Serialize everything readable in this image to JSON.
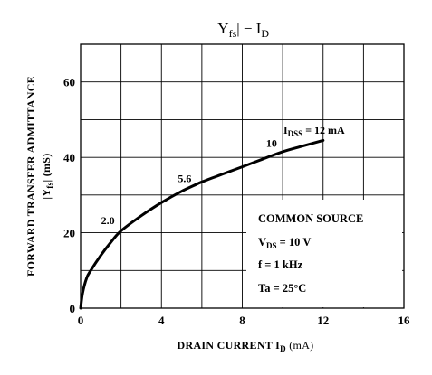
{
  "chart_data": {
    "type": "line",
    "title": {
      "left": "|Y",
      "sub": "fs",
      "mid": "| − I",
      "sub2": "D"
    },
    "xlabel": {
      "main": "DRAIN CURRENT   I",
      "sub": "D",
      "unit": "(mA)"
    },
    "ylabel": {
      "line1": "FORWARD TRANSFER ADMITTANCE",
      "line2_pre": "|Y",
      "line2_sub": "fs",
      "line2_post": "|   (mS)"
    },
    "xlim": [
      0,
      16
    ],
    "ylim": [
      0,
      70
    ],
    "xticks": [
      0,
      4,
      8,
      12,
      16
    ],
    "yticks": [
      0,
      20,
      40,
      60
    ],
    "grid": true,
    "series": [
      {
        "x": [
          0,
          0.1,
          0.3,
          0.5,
          1,
          1.5,
          2,
          3,
          4,
          5,
          5.6,
          6,
          7,
          8,
          9,
          10,
          11,
          12
        ],
        "y": [
          0,
          4,
          8,
          10,
          14,
          17.5,
          20.5,
          24.5,
          28,
          31,
          32.5,
          33.5,
          35.5,
          37.5,
          39.5,
          41.5,
          43,
          44.5
        ]
      }
    ],
    "point_labels": [
      {
        "x": 1.35,
        "y": 22.3,
        "text": "2.0"
      },
      {
        "x": 5.15,
        "y": 33.4,
        "text": "5.6"
      },
      {
        "x": 9.45,
        "y": 42.8,
        "text": "10"
      }
    ],
    "idss_label": {
      "pre": "I",
      "sub": "DSS",
      "post": " = 12 mA"
    },
    "conditions": [
      {
        "pre": "COMMON SOURCE",
        "sub": "",
        "post": ""
      },
      {
        "pre": "V",
        "sub": "DS",
        "post": " = 10 V"
      },
      {
        "pre": "f = 1 kHz",
        "sub": "",
        "post": ""
      },
      {
        "pre": "Ta = 25°C",
        "sub": "",
        "post": ""
      }
    ]
  }
}
